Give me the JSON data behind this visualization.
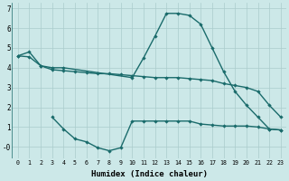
{
  "bg_color": "#cce8e8",
  "grid_color": "#aacccc",
  "line_color": "#1a6b6b",
  "line1_x": [
    0,
    1,
    2,
    3,
    4,
    10,
    11,
    12,
    13,
    14,
    15,
    16,
    17,
    18,
    19,
    20,
    21,
    22,
    23
  ],
  "line1_y": [
    4.6,
    4.8,
    4.1,
    4.0,
    4.0,
    3.5,
    4.5,
    5.6,
    6.75,
    6.75,
    6.65,
    6.2,
    5.0,
    3.8,
    2.8,
    2.1,
    1.5,
    0.9,
    0.85
  ],
  "line2_x": [
    0,
    1,
    2,
    3,
    4,
    5,
    6,
    7,
    8,
    9,
    10,
    11,
    12,
    13,
    14,
    15,
    16,
    17,
    18,
    19,
    20,
    21,
    22,
    23
  ],
  "line2_y": [
    4.6,
    4.55,
    4.1,
    3.9,
    3.85,
    3.8,
    3.75,
    3.7,
    3.7,
    3.65,
    3.6,
    3.55,
    3.5,
    3.5,
    3.5,
    3.45,
    3.4,
    3.35,
    3.2,
    3.1,
    3.0,
    2.8,
    2.1,
    1.5
  ],
  "line3_x": [
    3,
    4,
    5,
    6,
    7,
    8,
    9,
    10,
    11,
    12,
    13,
    14,
    15,
    16,
    17,
    18,
    19,
    20,
    21,
    22,
    23
  ],
  "line3_y": [
    1.5,
    0.9,
    0.4,
    0.25,
    -0.05,
    -0.2,
    -0.05,
    1.3,
    1.3,
    1.3,
    1.3,
    1.3,
    1.3,
    1.15,
    1.1,
    1.05,
    1.05,
    1.05,
    1.0,
    0.9,
    0.85
  ],
  "xlabel": "Humidex (Indice chaleur)",
  "xlim": [
    -0.5,
    23.5
  ],
  "ylim": [
    -0.6,
    7.3
  ],
  "yticks": [
    0,
    1,
    2,
    3,
    4,
    5,
    6,
    7
  ],
  "ytick_labels": [
    "-0",
    "1",
    "2",
    "3",
    "4",
    "5",
    "6",
    "7"
  ],
  "xticks": [
    0,
    1,
    2,
    3,
    4,
    5,
    6,
    7,
    8,
    9,
    10,
    11,
    12,
    13,
    14,
    15,
    16,
    17,
    18,
    19,
    20,
    21,
    22,
    23
  ],
  "marker": "D",
  "markersize": 2.2,
  "linewidth": 1.0
}
